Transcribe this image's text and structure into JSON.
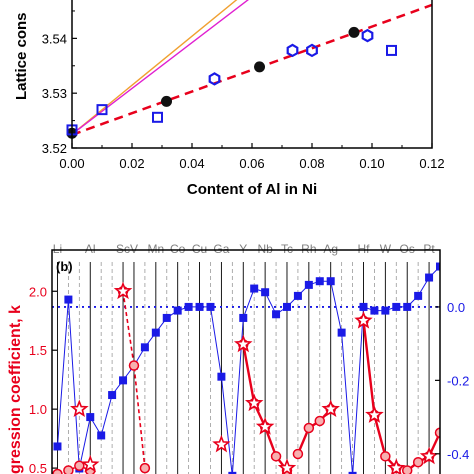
{
  "colors": {
    "dashed_fit": "#e8001c",
    "orange_line": "#f0a030",
    "magenta_line": "#e020d0",
    "blue_marker": "#1a1ae6",
    "black_marker": "#111111",
    "red_series": "#e8001c",
    "blue_series": "#1a1ae6",
    "element_label": "#808080"
  },
  "chart_data": [
    {
      "type": "scatter",
      "panel": "a",
      "xlabel": "Content of Al in Ni",
      "ylabel": "Lattice cons",
      "xlim": [
        0.0,
        0.12
      ],
      "ylim": [
        3.52,
        3.547
      ],
      "x_ticks": [
        "0.00",
        "0.02",
        "0.04",
        "0.06",
        "0.08",
        "0.10",
        "0.12"
      ],
      "y_ticks": [
        "3.52",
        "3.53",
        "3.54"
      ],
      "y_tick_values": [
        3.52,
        3.53,
        3.54
      ],
      "series": [
        {
          "marker": "black-sphere",
          "points": [
            [
              0.0,
              3.5227
            ],
            [
              0.0315,
              3.5285
            ],
            [
              0.0625,
              3.5348
            ],
            [
              0.094,
              3.5411
            ]
          ]
        },
        {
          "marker": "open-hexagon",
          "points": [
            [
              0.0475,
              3.5326
            ],
            [
              0.0735,
              3.5378
            ],
            [
              0.08,
              3.5378
            ],
            [
              0.0985,
              3.5405
            ]
          ]
        },
        {
          "marker": "open-square",
          "points": [
            [
              0.0,
              3.5233
            ],
            [
              0.01,
              3.527
            ],
            [
              0.0285,
              3.5256
            ],
            [
              0.1065,
              3.5378
            ]
          ]
        }
      ],
      "lines": [
        {
          "style": "dashed",
          "from": [
            0.0,
            3.5224
          ],
          "to": [
            0.12,
            3.5461
          ]
        },
        {
          "style": "solid-orange",
          "from": [
            0.0,
            3.5225
          ],
          "to": [
            0.057,
            3.548
          ]
        },
        {
          "style": "solid-magenta",
          "from": [
            0.0,
            3.5225
          ],
          "to": [
            0.061,
            3.548
          ]
        }
      ]
    },
    {
      "type": "line",
      "panel": "b",
      "panel_label": "(b)",
      "ylabel_left": "gression coefficient, k",
      "y_ticks_left": [
        "0.5",
        "1.0",
        "1.5",
        "2.0"
      ],
      "y_tick_values_left": [
        0.5,
        1.0,
        1.5,
        2.0
      ],
      "ylim_left": [
        0.45,
        2.35
      ],
      "y_ticks_right": [
        "0.0",
        "-0.2",
        "-0.4"
      ],
      "y_tick_values_right": [
        0.0,
        -0.2,
        -0.4
      ],
      "ylim_right": [
        -0.455,
        0.155
      ],
      "element_labels": [
        "Li",
        "Al",
        "Sc",
        "V",
        "Mn",
        "Co",
        "Cu",
        "Ga",
        "Y",
        "Nb",
        "Tc",
        "Rh",
        "Ag",
        "Hf",
        "W",
        "Os",
        "Pt"
      ],
      "element_positions": [
        1,
        4,
        7,
        8,
        10,
        12,
        14,
        16,
        18,
        20,
        22,
        24,
        26,
        29,
        31,
        33,
        35
      ],
      "x_range": [
        0.5,
        36
      ],
      "right_series": {
        "zero_line": 0.0,
        "x": [
          1,
          2,
          3,
          4,
          5,
          6,
          7,
          8,
          9,
          10,
          11,
          12,
          13,
          14,
          15,
          16,
          17,
          18,
          19,
          20,
          21,
          22,
          23,
          24,
          25,
          26,
          27,
          28,
          29,
          30,
          31,
          32,
          33,
          34,
          35,
          36
        ],
        "values": [
          -0.38,
          0.02,
          -0.44,
          -0.3,
          -0.35,
          -0.24,
          -0.2,
          -0.16,
          -0.11,
          -0.07,
          -0.03,
          -0.01,
          0.0,
          0.0,
          0.0,
          -0.19,
          -0.46,
          -0.03,
          0.05,
          0.04,
          -0.02,
          0.0,
          0.03,
          0.06,
          0.07,
          0.07,
          -0.07,
          -0.46,
          0.0,
          -0.01,
          -0.01,
          0.0,
          0.0,
          0.03,
          0.08,
          0.11
        ]
      },
      "left_segments": [
        {
          "style": "dashed",
          "x": [
            1,
            2,
            3,
            4
          ],
          "values": [
            0.45,
            0.48,
            0.52,
            0.48
          ]
        },
        {
          "style": "dashed",
          "x": [
            7,
            8,
            9
          ],
          "values": [
            2.0,
            1.37,
            0.5
          ]
        },
        {
          "style": "solid",
          "x": [
            18,
            19,
            20,
            21,
            22
          ],
          "values": [
            1.55,
            1.05,
            0.85,
            0.6,
            0.48
          ]
        },
        {
          "style": "solid",
          "x": [
            23,
            24,
            25,
            26
          ],
          "values": [
            0.62,
            0.84,
            0.9,
            1.0
          ]
        },
        {
          "style": "solid",
          "x": [
            29,
            30,
            31,
            32
          ],
          "values": [
            1.75,
            0.95,
            0.6,
            0.5
          ]
        },
        {
          "style": "solid",
          "x": [
            33,
            34,
            35,
            36
          ],
          "values": [
            0.48,
            0.55,
            0.6,
            0.8
          ]
        }
      ],
      "left_stars": [
        {
          "x": 3,
          "value": 1.0
        },
        {
          "x": 4,
          "value": 0.53
        },
        {
          "x": 7,
          "value": 2.0
        },
        {
          "x": 16,
          "value": 0.7
        },
        {
          "x": 18,
          "value": 1.55
        },
        {
          "x": 19,
          "value": 1.05
        },
        {
          "x": 20,
          "value": 0.85
        },
        {
          "x": 22,
          "value": 0.5
        },
        {
          "x": 26,
          "value": 1.0
        },
        {
          "x": 29,
          "value": 1.75
        },
        {
          "x": 30,
          "value": 0.95
        },
        {
          "x": 32,
          "value": 0.5
        },
        {
          "x": 35,
          "value": 0.6
        }
      ]
    }
  ]
}
